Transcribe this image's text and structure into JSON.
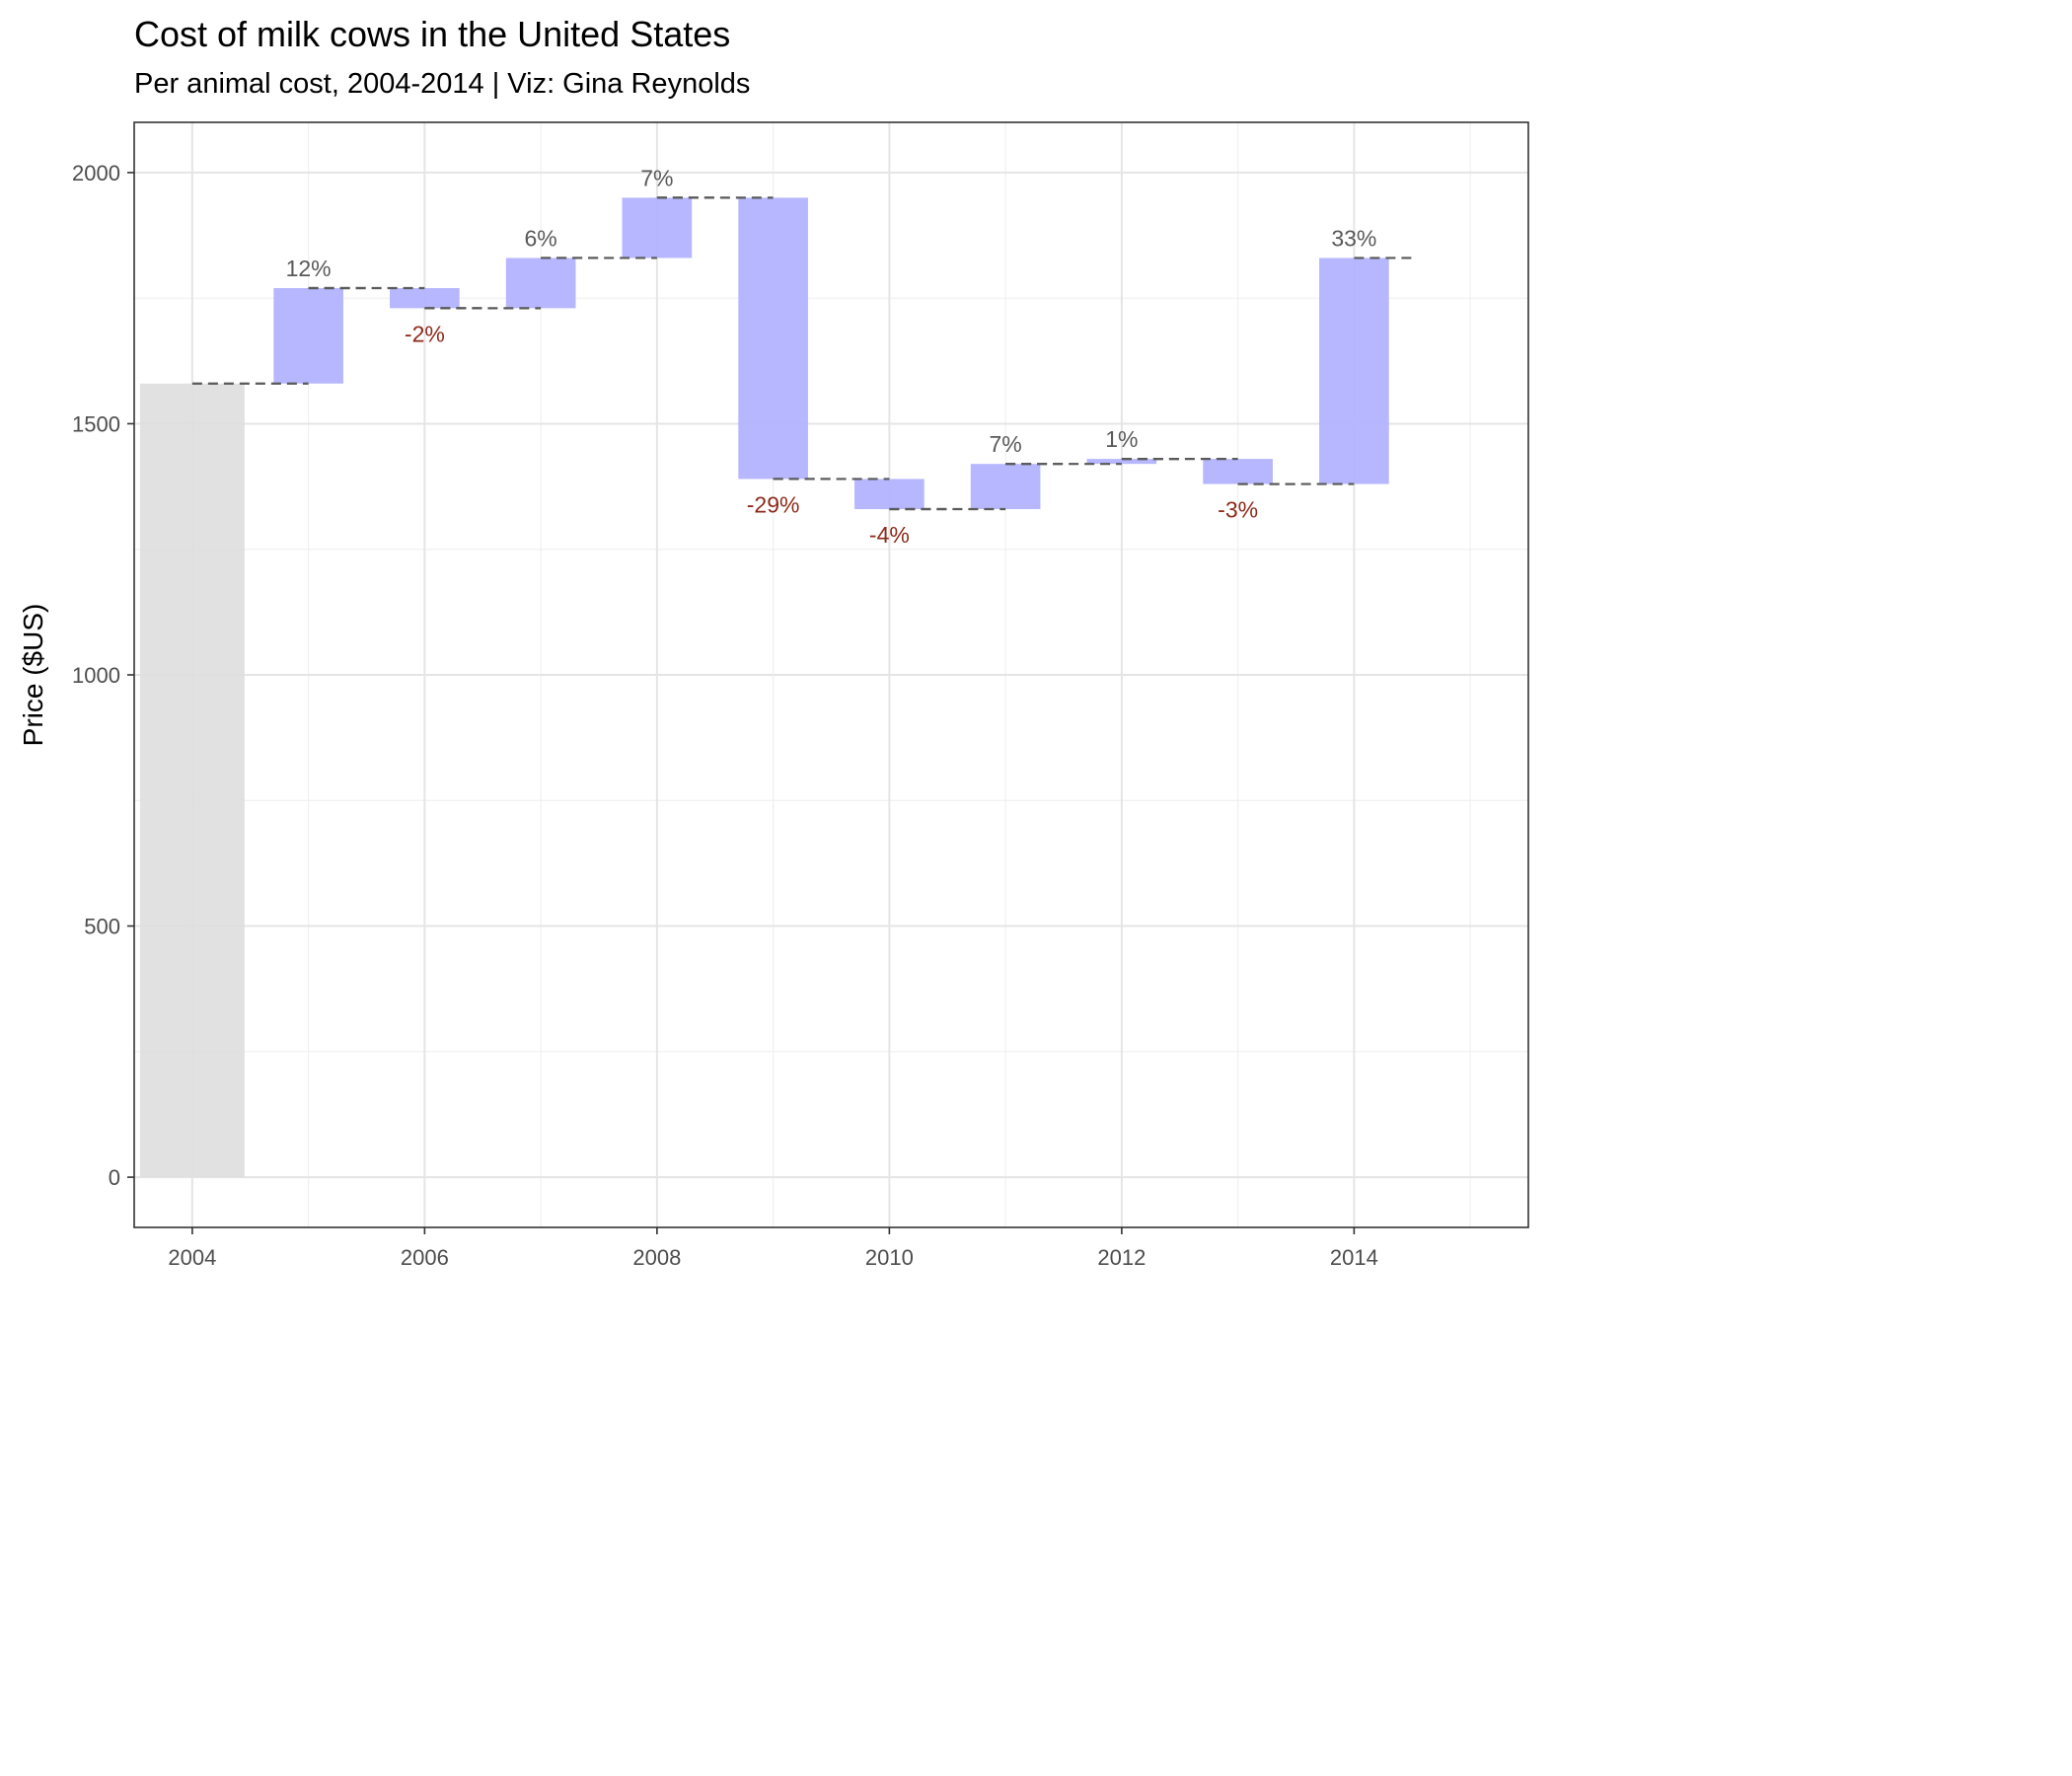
{
  "chart_data": {
    "type": "bar",
    "title": "Cost of milk cows in the United States",
    "subtitle": "Per animal cost, 2004-2014 | Viz: Gina Reynolds",
    "xlabel": "",
    "ylabel": "Price ($US)",
    "xlim": [
      2003.5,
      2015.5
    ],
    "ylim": [
      -100,
      2100
    ],
    "x_ticks": [
      2004,
      2006,
      2008,
      2010,
      2012,
      2014
    ],
    "y_ticks": [
      0,
      500,
      1000,
      1500,
      2000
    ],
    "grid": true,
    "base": {
      "year": 2004,
      "value": 1580,
      "color": "#dedede"
    },
    "steps": [
      {
        "year": 2005,
        "start": 1580,
        "end": 1770,
        "label": "12%"
      },
      {
        "year": 2006,
        "start": 1770,
        "end": 1730,
        "label": "-2%"
      },
      {
        "year": 2007,
        "start": 1730,
        "end": 1830,
        "label": "6%"
      },
      {
        "year": 2008,
        "start": 1830,
        "end": 1950,
        "label": "7%"
      },
      {
        "year": 2009,
        "start": 1950,
        "end": 1390,
        "label": "-29%"
      },
      {
        "year": 2010,
        "start": 1390,
        "end": 1330,
        "label": "-4%"
      },
      {
        "year": 2011,
        "start": 1330,
        "end": 1420,
        "label": "7%"
      },
      {
        "year": 2012,
        "start": 1420,
        "end": 1430,
        "label": "1%"
      },
      {
        "year": 2013,
        "start": 1430,
        "end": 1380,
        "label": "-3%"
      },
      {
        "year": 2014,
        "start": 1380,
        "end": 1830,
        "label": "33%"
      }
    ],
    "colors": {
      "step_fill": "#b3b3ff",
      "positive_label": "#595959",
      "negative_label": "#8b2a1a",
      "dashed_line": "#595959"
    }
  }
}
